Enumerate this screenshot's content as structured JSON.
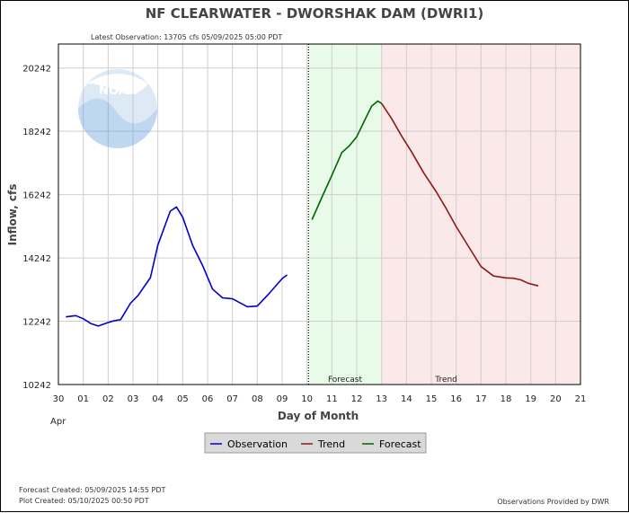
{
  "title": "NF CLEARWATER - DWORSHAK DAM  (DWRI1)",
  "latest_observation": "Latest Observation: 13705 cfs 05/09/2025 05:00 PDT",
  "footer": {
    "forecast_created": "Forecast Created: 05/09/2025 14:55 PDT",
    "plot_created": "Plot Created: 05/10/2025 00:50 PDT",
    "provider": "Observations Provided by DWR"
  },
  "logo_text": "NOAA",
  "colors": {
    "observation": "#0000cc",
    "trend": "#8b1a1a",
    "forecast": "#006400",
    "forecast_bg": "#e8fae8",
    "trend_bg": "#fbe8e8",
    "grid": "#cfcfcf"
  },
  "chart_data": {
    "type": "line",
    "xlabel": "Day of Month",
    "ylabel": "Inflow, cfs",
    "x_unit_note": "days since Apr 30 00:00",
    "month_label": "Apr",
    "x_ticks": [
      "30",
      "01",
      "02",
      "03",
      "04",
      "05",
      "06",
      "07",
      "08",
      "09",
      "10",
      "11",
      "12",
      "13",
      "14",
      "15",
      "16",
      "17",
      "18",
      "19",
      "20",
      "21"
    ],
    "y_ticks": [
      "10242",
      "12242",
      "14242",
      "16242",
      "18242",
      "20242"
    ],
    "xlim": [
      0,
      21
    ],
    "ylim": [
      10242,
      21000
    ],
    "current_time": 10.06,
    "regions": [
      {
        "name": "Forecast",
        "start": 10.06,
        "end": 13.0
      },
      {
        "name": "Trend",
        "start": 13.0,
        "end": 21.0
      }
    ],
    "legend": [
      "Observation",
      "Trend",
      "Forecast"
    ],
    "series": [
      {
        "name": "Observation",
        "x": [
          0.3,
          0.7,
          1.0,
          1.3,
          1.6,
          2.0,
          2.2,
          2.5,
          2.9,
          3.2,
          3.7,
          4.0,
          4.5,
          4.75,
          5.0,
          5.4,
          5.8,
          6.2,
          6.6,
          7.0,
          7.6,
          8.0,
          8.5,
          9.0,
          9.2
        ],
        "y": [
          12380,
          12420,
          12320,
          12170,
          12090,
          12200,
          12250,
          12290,
          12810,
          13050,
          13620,
          14650,
          15720,
          15850,
          15530,
          14640,
          14000,
          13260,
          12980,
          12950,
          12700,
          12720,
          13140,
          13590,
          13705
        ]
      },
      {
        "name": "Forecast",
        "x": [
          10.2,
          10.6,
          11.0,
          11.4,
          11.7,
          12.0,
          12.3,
          12.6,
          12.85,
          13.0
        ],
        "y": [
          15450,
          16160,
          16850,
          17570,
          17780,
          18070,
          18560,
          19040,
          19200,
          19120
        ]
      },
      {
        "name": "Trend",
        "x": [
          13.0,
          13.4,
          13.8,
          14.2,
          14.7,
          15.2,
          15.6,
          16.0,
          16.5,
          17.0,
          17.5,
          18.0,
          18.3,
          18.6,
          18.9,
          19.3
        ],
        "y": [
          19120,
          18650,
          18100,
          17600,
          16920,
          16330,
          15800,
          15230,
          14600,
          13970,
          13670,
          13610,
          13600,
          13550,
          13440,
          13360
        ]
      }
    ]
  }
}
